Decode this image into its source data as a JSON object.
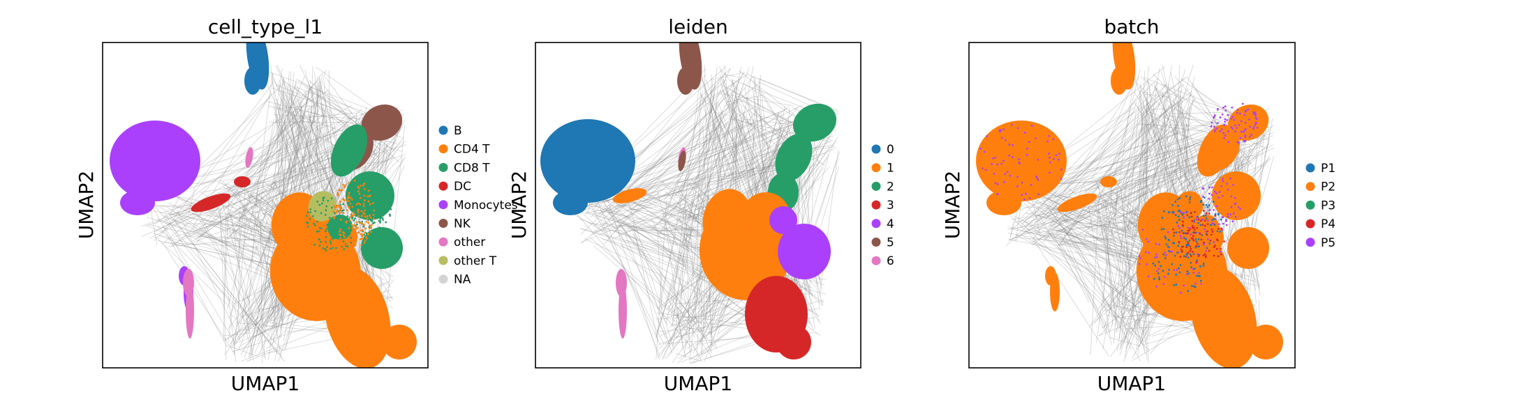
{
  "chart_data": [
    {
      "type": "scatter",
      "title": "cell_type_l1",
      "xlabel": "UMAP1",
      "ylabel": "UMAP2",
      "ticks": "none",
      "legend_position": "right",
      "overlay": "grey connectivity edges",
      "series": [
        {
          "name": "B",
          "color": "#1f77b4"
        },
        {
          "name": "CD4 T",
          "color": "#ff7f0e"
        },
        {
          "name": "CD8 T",
          "color": "#279e68"
        },
        {
          "name": "DC",
          "color": "#d62728"
        },
        {
          "name": "Monocytes",
          "color": "#aa40fc"
        },
        {
          "name": "NK",
          "color": "#8c564b"
        },
        {
          "name": "other",
          "color": "#e377c2"
        },
        {
          "name": "other T",
          "color": "#b5bd61"
        },
        {
          "name": "NA",
          "color": "#d3d3d3"
        }
      ]
    },
    {
      "type": "scatter",
      "title": "leiden",
      "xlabel": "UMAP1",
      "ylabel": "UMAP2",
      "ticks": "none",
      "legend_position": "right",
      "overlay": "grey connectivity edges",
      "series": [
        {
          "name": "0",
          "color": "#1f77b4"
        },
        {
          "name": "1",
          "color": "#ff7f0e"
        },
        {
          "name": "2",
          "color": "#279e68"
        },
        {
          "name": "3",
          "color": "#d62728"
        },
        {
          "name": "4",
          "color": "#aa40fc"
        },
        {
          "name": "5",
          "color": "#8c564b"
        },
        {
          "name": "6",
          "color": "#e377c2"
        }
      ]
    },
    {
      "type": "scatter",
      "title": "batch",
      "xlabel": "UMAP1",
      "ylabel": "UMAP2",
      "ticks": "none",
      "legend_position": "right",
      "overlay": "grey connectivity edges",
      "series": [
        {
          "name": "P1",
          "color": "#1f77b4"
        },
        {
          "name": "P2",
          "color": "#ff7f0e"
        },
        {
          "name": "P3",
          "color": "#279e68"
        },
        {
          "name": "P4",
          "color": "#d62728"
        },
        {
          "name": "P5",
          "color": "#aa40fc"
        }
      ]
    }
  ]
}
